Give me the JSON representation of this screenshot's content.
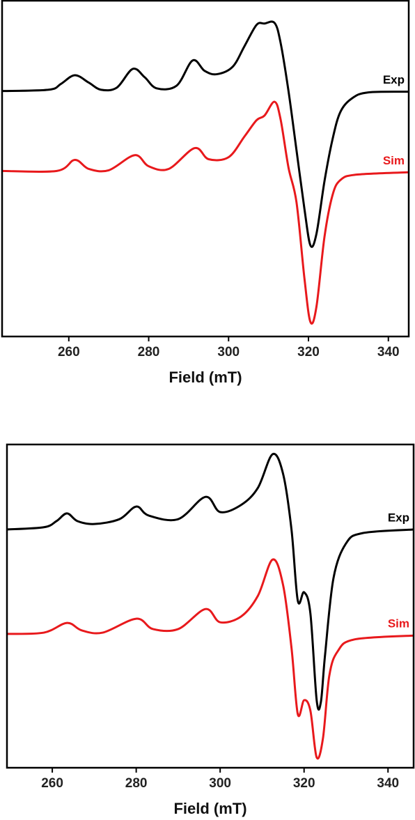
{
  "chart_data": [
    {
      "type": "line",
      "x_label": "Field (mT)",
      "xlim": [
        243.3,
        345.1
      ],
      "xticks": [
        260,
        280,
        300,
        320,
        340
      ],
      "ylim": [
        0,
        100
      ],
      "series": [
        {
          "name": "Exp",
          "color": "#000000",
          "x": [
            243.3,
            255,
            258,
            261.5,
            265,
            268,
            272,
            276,
            279,
            282,
            287,
            291,
            294,
            297,
            301,
            304,
            307,
            309,
            311.5,
            313,
            315,
            317,
            319,
            320.5,
            322,
            324,
            326,
            328,
            331,
            335,
            345
          ],
          "values": [
            73.1,
            73.5,
            75.2,
            77.8,
            75.6,
            73.5,
            74.1,
            79.7,
            77.2,
            73.9,
            74.7,
            82.2,
            79.1,
            78.1,
            80.3,
            86.5,
            92.8,
            93.2,
            93.4,
            87.6,
            73.1,
            55.5,
            37.9,
            27.1,
            30.6,
            46.2,
            58.6,
            66.9,
            71.0,
            72.7,
            72.9
          ]
        },
        {
          "name": "Sim",
          "color": "#e8191c",
          "x": [
            243.3,
            257,
            261.5,
            265,
            270,
            276.5,
            280,
            285,
            291.5,
            295,
            300,
            304,
            307,
            309,
            311.5,
            313,
            315,
            317,
            319,
            320.5,
            322,
            324,
            326,
            328,
            332,
            345
          ],
          "values": [
            49.3,
            49.3,
            52.6,
            49.9,
            49.5,
            54.0,
            50.7,
            49.9,
            56.1,
            52.8,
            53.4,
            59.6,
            64.4,
            65.8,
            69.9,
            64.8,
            50.3,
            40.0,
            17.2,
            4.3,
            8.9,
            29.6,
            42.0,
            46.6,
            48.2,
            48.9
          ]
        }
      ]
    },
    {
      "type": "line",
      "x_label": "Field (mT)",
      "xlim": [
        249.2,
        346.1
      ],
      "xticks": [
        260,
        280,
        300,
        320,
        340
      ],
      "ylim": [
        0,
        100
      ],
      "series": [
        {
          "name": "Exp",
          "color": "#000000",
          "x": [
            249.2,
            258,
            261,
            263.5,
            266,
            270,
            276,
            280,
            283,
            290,
            296.5,
            300,
            305,
            309,
            312.5,
            315,
            317,
            318.5,
            320,
            321.5,
            323,
            324,
            325,
            327,
            330,
            334,
            346.1
          ],
          "values": [
            73.7,
            74.4,
            76.3,
            78.7,
            76.3,
            75.4,
            76.9,
            80.8,
            78.0,
            76.9,
            83.8,
            79.1,
            81.3,
            86.6,
            97.0,
            90.9,
            73.7,
            51.7,
            54.3,
            47.8,
            20.9,
            20.3,
            34.9,
            58.6,
            69.4,
            72.6,
            73.7
          ]
        },
        {
          "name": "Sim",
          "color": "#e8191c",
          "x": [
            249.2,
            258,
            263.5,
            267,
            272,
            280,
            284,
            290,
            296.5,
            300,
            305,
            309,
            312.5,
            315,
            317,
            318.5,
            320,
            321.5,
            323,
            324.5,
            326,
            328,
            332,
            346.1
          ],
          "values": [
            41.4,
            41.8,
            44.8,
            42.5,
            41.8,
            46.1,
            42.9,
            42.9,
            49.1,
            45.0,
            46.8,
            53.2,
            64.4,
            56.5,
            37.1,
            16.6,
            20.9,
            17.7,
            3.2,
            9.1,
            28.4,
            36.0,
            39.7,
            40.9
          ]
        }
      ]
    }
  ]
}
